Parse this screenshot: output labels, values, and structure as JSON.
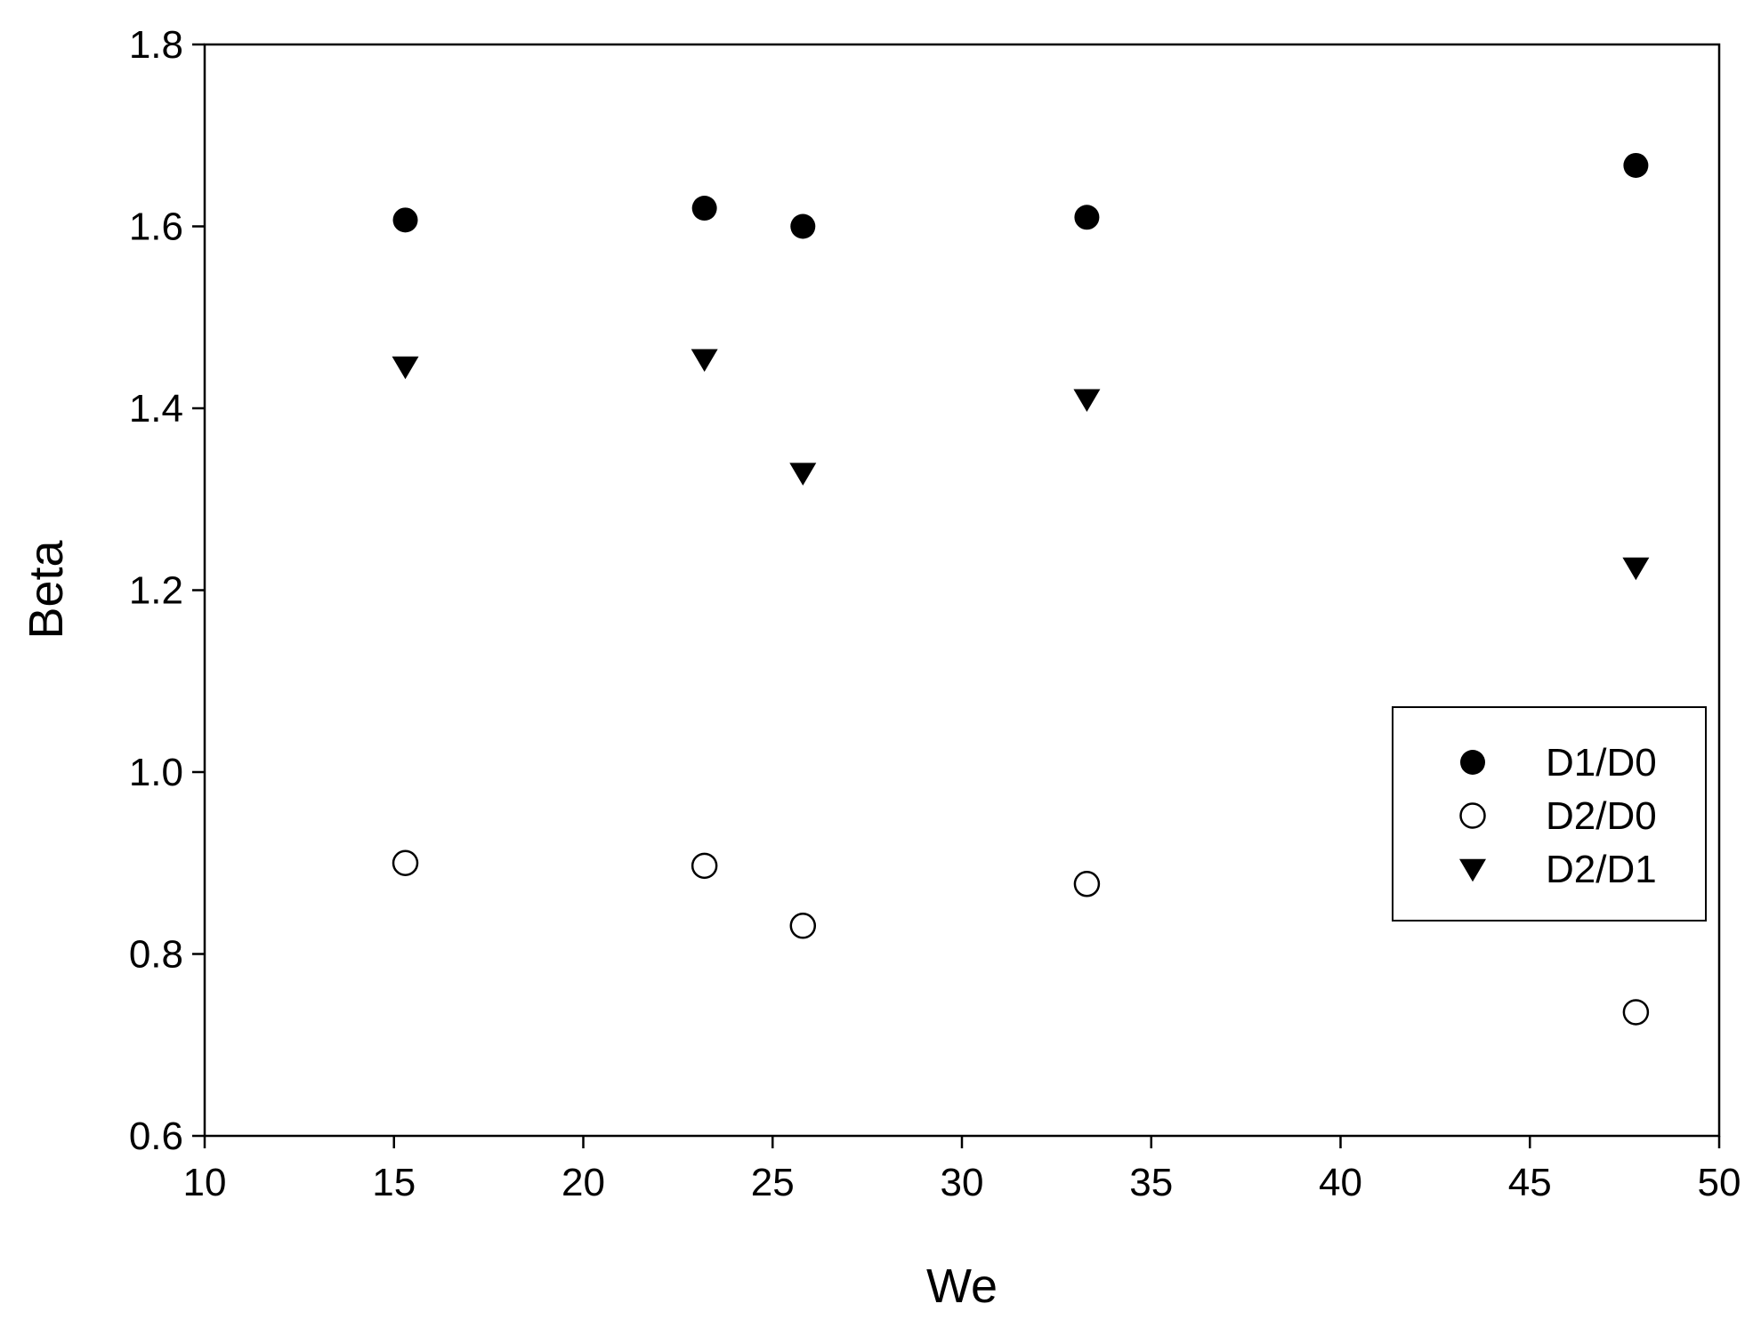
{
  "chart_data": {
    "type": "scatter",
    "title": "",
    "xlabel": "We",
    "ylabel": "Beta",
    "xlim": [
      10,
      50
    ],
    "ylim": [
      0.6,
      1.8
    ],
    "xticks": [
      10,
      15,
      20,
      25,
      30,
      35,
      40,
      45,
      50
    ],
    "yticks": [
      0.6,
      0.8,
      1.0,
      1.2,
      1.4,
      1.6,
      1.8
    ],
    "xtick_labels": [
      "10",
      "15",
      "20",
      "25",
      "30",
      "35",
      "40",
      "45",
      "50"
    ],
    "ytick_labels": [
      "0.6",
      "0.8",
      "1.0",
      "1.2",
      "1.4",
      "1.6",
      "1.8"
    ],
    "grid": false,
    "legend_position": "right",
    "series": [
      {
        "name": "D1/D0",
        "marker": "filled-circle",
        "color": "#000000",
        "x": [
          15.3,
          23.2,
          25.8,
          33.3,
          47.8
        ],
        "y": [
          1.607,
          1.62,
          1.6,
          1.61,
          1.667
        ]
      },
      {
        "name": "D2/D0",
        "marker": "open-circle",
        "color": "#000000",
        "x": [
          15.3,
          23.2,
          25.8,
          33.3,
          47.8
        ],
        "y": [
          0.9,
          0.897,
          0.831,
          0.877,
          0.736
        ]
      },
      {
        "name": "D2/D1",
        "marker": "filled-triangle-down",
        "color": "#000000",
        "x": [
          15.3,
          23.2,
          25.8,
          33.3,
          47.8
        ],
        "y": [
          1.446,
          1.454,
          1.329,
          1.41,
          1.225
        ]
      }
    ]
  }
}
